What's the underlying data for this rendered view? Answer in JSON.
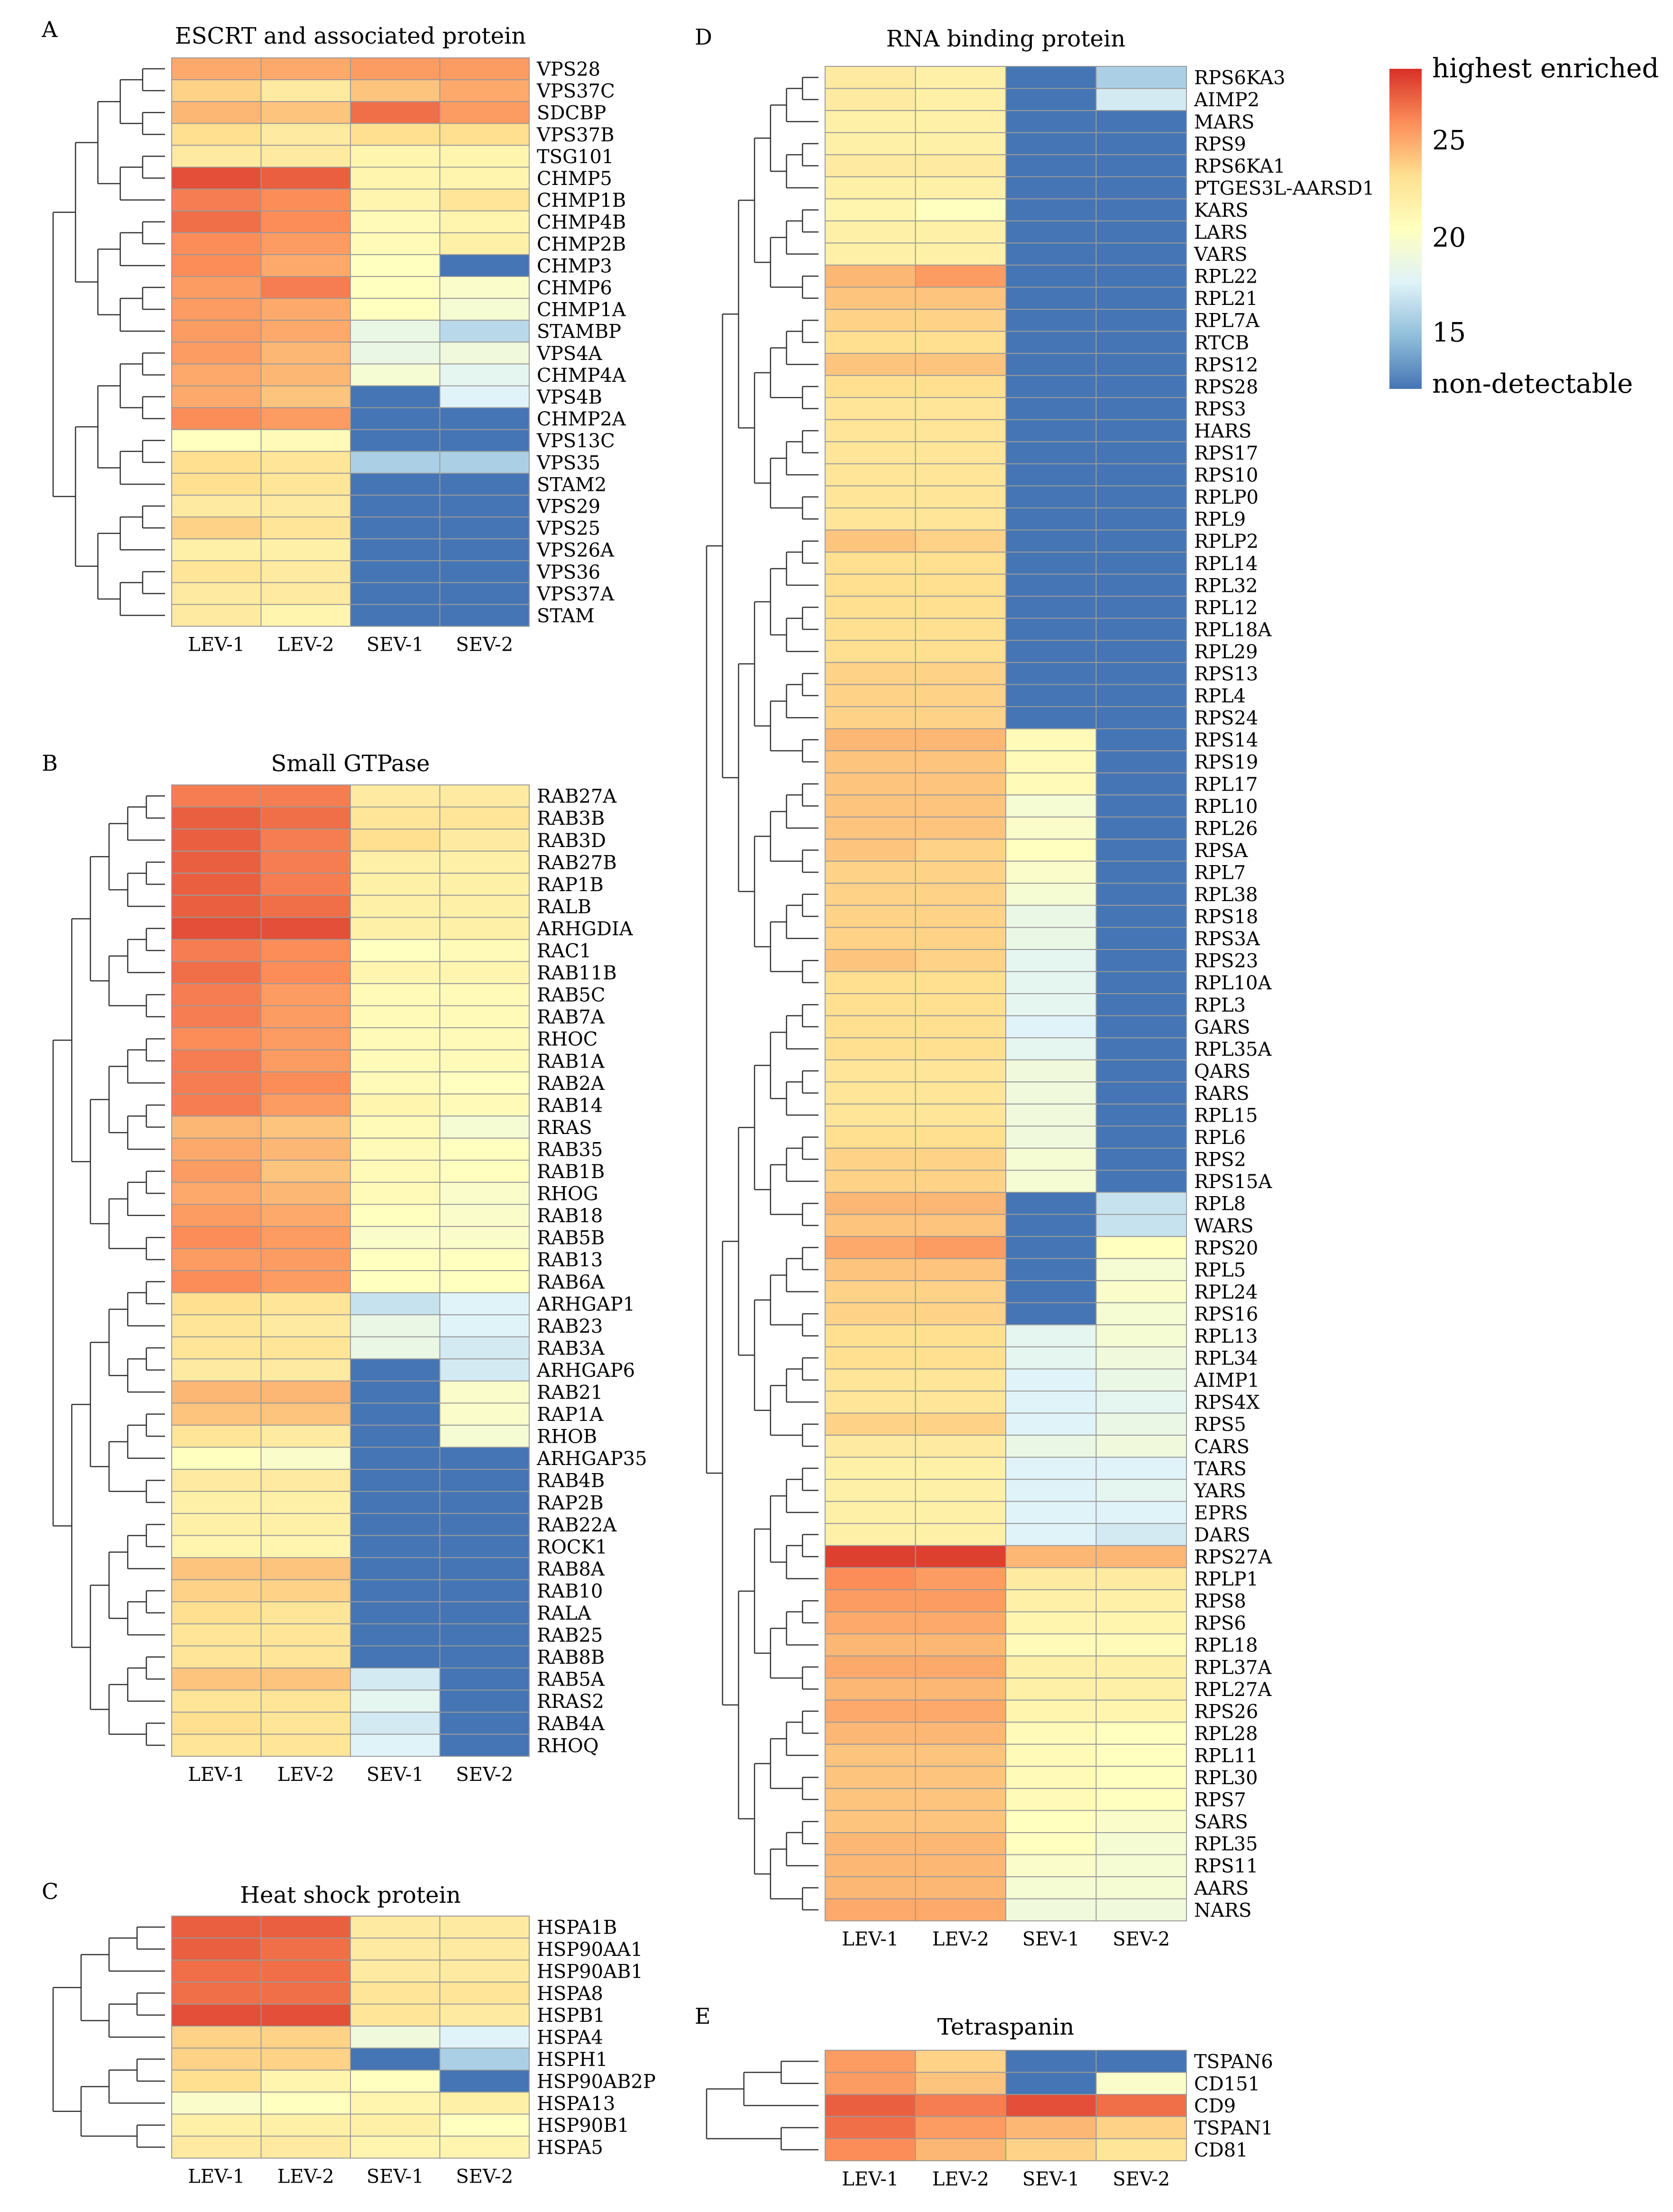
{
  "figure": {
    "legend": {
      "top_label": "highest enriched",
      "bottom_label": "non-detectable",
      "ticks": [
        25,
        20,
        15
      ],
      "min": 11,
      "max": 29,
      "colors": [
        "#4575b4",
        "#91bfdb",
        "#e0f3f8",
        "#ffffbf",
        "#fee090",
        "#fc8d59",
        "#d73027"
      ]
    }
  },
  "chart_data": [
    {
      "type": "heatmap",
      "letter": "A",
      "title": "ESCRT and associated protein",
      "columns": [
        "LEV-1",
        "LEV-2",
        "SEV-1",
        "SEV-2"
      ],
      "rows": [
        "VPS28",
        "VPS37C",
        "SDCBP",
        "VPS37B",
        "TSG101",
        "CHMP5",
        "CHMP1B",
        "CHMP4B",
        "CHMP2B",
        "CHMP3",
        "CHMP6",
        "CHMP1A",
        "STAMBP",
        "VPS4A",
        "CHMP4A",
        "VPS4B",
        "CHMP2A",
        "VPS13C",
        "VPS35",
        "STAM2",
        "VPS29",
        "VPS25",
        "VPS26A",
        "VPS36",
        "VPS37A",
        "STAM"
      ],
      "values": [
        [
          25,
          25,
          25.5,
          25.5
        ],
        [
          23.5,
          22,
          24,
          25
        ],
        [
          24.5,
          24,
          27,
          25.5
        ],
        [
          23,
          22,
          23,
          23
        ],
        [
          22,
          22,
          21,
          21
        ],
        [
          28,
          27.5,
          21,
          21
        ],
        [
          26.5,
          26,
          21,
          22.5
        ],
        [
          27,
          26,
          20.5,
          21
        ],
        [
          26,
          25.5,
          20.5,
          21.5
        ],
        [
          26,
          25,
          20,
          11
        ],
        [
          25.5,
          26.5,
          20,
          19.5
        ],
        [
          25.5,
          25,
          20,
          19
        ],
        [
          25.5,
          25,
          18,
          15.5
        ],
        [
          25.5,
          24.5,
          18,
          18.5
        ],
        [
          25,
          24.5,
          19,
          17.5
        ],
        [
          25,
          24,
          11,
          17
        ],
        [
          26,
          25.5,
          11,
          11
        ],
        [
          20,
          20.5,
          11,
          11
        ],
        [
          23,
          22.5,
          15,
          15
        ],
        [
          23,
          22.5,
          11,
          11
        ],
        [
          22,
          22,
          11,
          11
        ],
        [
          23.5,
          22.5,
          11,
          11
        ],
        [
          21.5,
          21.5,
          11,
          11
        ],
        [
          22.5,
          22,
          11,
          11
        ],
        [
          22,
          22,
          11,
          11
        ],
        [
          22,
          21,
          11,
          11
        ]
      ]
    },
    {
      "type": "heatmap",
      "letter": "B",
      "title": "Small GTPase",
      "columns": [
        "LEV-1",
        "LEV-2",
        "SEV-1",
        "SEV-2"
      ],
      "rows": [
        "RAB27A",
        "RAB3B",
        "RAB3D",
        "RAB27B",
        "RAP1B",
        "RALB",
        "ARHGDIA",
        "RAC1",
        "RAB11B",
        "RAB5C",
        "RAB7A",
        "RHOC",
        "RAB1A",
        "RAB2A",
        "RAB14",
        "RRAS",
        "RAB35",
        "RAB1B",
        "RHOG",
        "RAB18",
        "RAB5B",
        "RAB13",
        "RAB6A",
        "ARHGAP1",
        "RAB23",
        "RAB3A",
        "ARHGAP6",
        "RAB21",
        "RAP1A",
        "RHOB",
        "ARHGAP35",
        "RAB4B",
        "RAP2B",
        "RAB22A",
        "ROCK1",
        "RAB8A",
        "RAB10",
        "RALA",
        "RAB25",
        "RAB8B",
        "RAB5A",
        "RRAS2",
        "RAB4A",
        "RHOQ"
      ],
      "values": [
        [
          26.5,
          26.5,
          22,
          22
        ],
        [
          27.5,
          27,
          22.5,
          22.5
        ],
        [
          27.5,
          26.5,
          23,
          22
        ],
        [
          27.5,
          26.5,
          21.5,
          21.5
        ],
        [
          27.5,
          26.5,
          21.5,
          21.5
        ],
        [
          27.5,
          27,
          21.5,
          21.5
        ],
        [
          28,
          28,
          21.5,
          21.5
        ],
        [
          26.5,
          26,
          20,
          20.5
        ],
        [
          27,
          26,
          21,
          21
        ],
        [
          26.5,
          25.5,
          20.5,
          20.5
        ],
        [
          26.5,
          25.5,
          20.5,
          20.5
        ],
        [
          26,
          25.5,
          20.5,
          20.5
        ],
        [
          26.5,
          25.5,
          20.5,
          20.5
        ],
        [
          26.5,
          26,
          20.5,
          20
        ],
        [
          26.5,
          25.5,
          21,
          20.5
        ],
        [
          24.5,
          24,
          20.5,
          19
        ],
        [
          25,
          24.5,
          20.5,
          20
        ],
        [
          25.5,
          24,
          20.5,
          20
        ],
        [
          25,
          24.5,
          20.5,
          19.5
        ],
        [
          25.5,
          25,
          20,
          19.5
        ],
        [
          26,
          25.5,
          19.5,
          19.5
        ],
        [
          25.5,
          25.5,
          20,
          20
        ],
        [
          26,
          25.5,
          20,
          20
        ],
        [
          23,
          22.5,
          16,
          17
        ],
        [
          22.5,
          22,
          18,
          17
        ],
        [
          22.5,
          22.5,
          18,
          16.5
        ],
        [
          22,
          22,
          11,
          16.5
        ],
        [
          24.5,
          24.5,
          11,
          19.5
        ],
        [
          24,
          24,
          11,
          19.5
        ],
        [
          22.5,
          22,
          11,
          19
        ],
        [
          20,
          19.5,
          11,
          11
        ],
        [
          22,
          22,
          11,
          11
        ],
        [
          21.5,
          21.5,
          11,
          11
        ],
        [
          21.5,
          21.5,
          11,
          11
        ],
        [
          21,
          21,
          11,
          11
        ],
        [
          24,
          24,
          11,
          11
        ],
        [
          23.5,
          23.5,
          11,
          11
        ],
        [
          23,
          22.5,
          11,
          11
        ],
        [
          22.5,
          22.5,
          11,
          11
        ],
        [
          22.5,
          22.5,
          11,
          11
        ],
        [
          24,
          24,
          16.5,
          11
        ],
        [
          22.5,
          22.5,
          17.5,
          11
        ],
        [
          23,
          22.5,
          16.5,
          11
        ],
        [
          22.5,
          22.5,
          17,
          11
        ]
      ]
    },
    {
      "type": "heatmap",
      "letter": "C",
      "title": "Heat shock protein",
      "columns": [
        "LEV-1",
        "LEV-2",
        "SEV-1",
        "SEV-2"
      ],
      "rows": [
        "HSPA1B",
        "HSP90AA1",
        "HSP90AB1",
        "HSPA8",
        "HSPB1",
        "HSPA4",
        "HSPH1",
        "HSP90AB2P",
        "HSPA13",
        "HSP90B1",
        "HSPA5"
      ],
      "values": [
        [
          27.5,
          27.5,
          22,
          22
        ],
        [
          27.5,
          27,
          22,
          22
        ],
        [
          27,
          27,
          22,
          22
        ],
        [
          27,
          27,
          22.5,
          22.5
        ],
        [
          28,
          28,
          22.5,
          22
        ],
        [
          23.5,
          23.5,
          18.5,
          17
        ],
        [
          23.5,
          23.5,
          11,
          15
        ],
        [
          23,
          21,
          20,
          11
        ],
        [
          19.5,
          20,
          21,
          21.5
        ],
        [
          21.5,
          21.5,
          21.5,
          20
        ],
        [
          22,
          22,
          21,
          21
        ]
      ]
    },
    {
      "type": "heatmap",
      "letter": "D",
      "title": "RNA binding protein",
      "columns": [
        "LEV-1",
        "LEV-2",
        "SEV-1",
        "SEV-2"
      ],
      "rows": [
        "RPS6KA3",
        "AIMP2",
        "MARS",
        "RPS9",
        "RPS6KA1",
        "PTGES3L-AARSD1",
        "KARS",
        "LARS",
        "VARS",
        "RPL22",
        "RPL21",
        "RPL7A",
        "RTCB",
        "RPS12",
        "RPS28",
        "RPS3",
        "HARS",
        "RPS17",
        "RPS10",
        "RPLP0",
        "RPL9",
        "RPLP2",
        "RPL14",
        "RPL32",
        "RPL12",
        "RPL18A",
        "RPL29",
        "RPS13",
        "RPL4",
        "RPS24",
        "RPS14",
        "RPS19",
        "RPL17",
        "RPL10",
        "RPL26",
        "RPSA",
        "RPL7",
        "RPL38",
        "RPS18",
        "RPS3A",
        "RPS23",
        "RPL10A",
        "RPL3",
        "GARS",
        "RPL35A",
        "QARS",
        "RARS",
        "RPL15",
        "RPL6",
        "RPS2",
        "RPS15A",
        "RPL8",
        "WARS",
        "RPS20",
        "RPL5",
        "RPL24",
        "RPS16",
        "RPL13",
        "RPL34",
        "AIMP1",
        "RPS4X",
        "RPS5",
        "CARS",
        "TARS",
        "YARS",
        "EPRS",
        "DARS",
        "RPS27A",
        "RPLP1",
        "RPS8",
        "RPS6",
        "RPL18",
        "RPL37A",
        "RPL27A",
        "RPS26",
        "RPL28",
        "RPL11",
        "RPL30",
        "RPS7",
        "SARS",
        "RPL35",
        "RPS11",
        "AARS",
        "NARS"
      ],
      "values": [
        [
          22,
          21.5,
          11,
          15
        ],
        [
          22,
          21.5,
          11,
          16.5
        ],
        [
          21.5,
          21.5,
          11,
          11
        ],
        [
          21.5,
          21.5,
          11,
          11
        ],
        [
          22,
          22,
          11,
          11
        ],
        [
          21.5,
          21.5,
          11,
          11
        ],
        [
          21,
          20,
          11,
          11
        ],
        [
          21.5,
          21.5,
          11,
          11
        ],
        [
          21.5,
          21.5,
          11,
          11
        ],
        [
          24.5,
          25.5,
          11,
          11
        ],
        [
          24,
          24,
          11,
          11
        ],
        [
          23.5,
          23.5,
          11,
          11
        ],
        [
          23,
          23,
          11,
          11
        ],
        [
          24,
          24,
          11,
          11
        ],
        [
          23,
          23,
          11,
          11
        ],
        [
          22.5,
          22.5,
          11,
          11
        ],
        [
          22.5,
          22.5,
          11,
          11
        ],
        [
          22.5,
          22.5,
          11,
          11
        ],
        [
          22.5,
          22.5,
          11,
          11
        ],
        [
          22.5,
          22.5,
          11,
          11
        ],
        [
          22.5,
          22.5,
          11,
          11
        ],
        [
          24,
          23.5,
          11,
          11
        ],
        [
          23,
          23,
          11,
          11
        ],
        [
          23,
          23,
          11,
          11
        ],
        [
          23,
          23,
          11,
          11
        ],
        [
          23,
          23,
          11,
          11
        ],
        [
          23,
          23,
          11,
          11
        ],
        [
          23.5,
          23.5,
          11,
          11
        ],
        [
          23.5,
          23.5,
          11,
          11
        ],
        [
          23.5,
          23.5,
          11,
          11
        ],
        [
          24.5,
          24.5,
          20.5,
          11
        ],
        [
          24,
          24,
          20.5,
          11
        ],
        [
          24,
          24,
          20.5,
          11
        ],
        [
          24,
          24,
          19,
          11
        ],
        [
          24,
          24,
          19.5,
          11
        ],
        [
          24,
          23.5,
          20,
          11
        ],
        [
          23.5,
          23.5,
          19.5,
          11
        ],
        [
          23.5,
          23.5,
          19,
          11
        ],
        [
          23.5,
          23.5,
          18,
          11
        ],
        [
          23.5,
          23.5,
          18,
          11
        ],
        [
          24,
          23.5,
          17.5,
          11
        ],
        [
          23,
          23,
          17.5,
          11
        ],
        [
          23,
          23,
          17.5,
          11
        ],
        [
          23,
          23,
          17,
          11
        ],
        [
          23,
          23,
          17.5,
          11
        ],
        [
          22.5,
          22.5,
          18.5,
          11
        ],
        [
          22.5,
          22.5,
          18.5,
          11
        ],
        [
          22.5,
          22.5,
          18.5,
          11
        ],
        [
          23,
          23,
          18.5,
          11
        ],
        [
          23.5,
          23.5,
          19,
          11
        ],
        [
          23.5,
          23.5,
          19,
          11
        ],
        [
          24.5,
          24.5,
          11,
          16
        ],
        [
          24,
          24,
          11,
          16
        ],
        [
          25,
          25.5,
          11,
          20
        ],
        [
          24,
          24,
          11,
          19
        ],
        [
          23.5,
          23.5,
          11,
          19.5
        ],
        [
          23.5,
          23.5,
          11,
          19
        ],
        [
          23,
          23,
          17.5,
          19
        ],
        [
          23,
          23,
          17.5,
          18.5
        ],
        [
          22.5,
          22.5,
          17,
          18
        ],
        [
          22.5,
          22.5,
          17,
          17.5
        ],
        [
          23.5,
          23.5,
          17,
          18
        ],
        [
          22,
          22,
          18,
          18.5
        ],
        [
          21.5,
          21.5,
          17,
          17
        ],
        [
          21.5,
          21.5,
          17,
          17.5
        ],
        [
          21.5,
          21.5,
          17,
          17
        ],
        [
          21.5,
          21.5,
          17,
          16.5
        ],
        [
          28.5,
          28.5,
          24.5,
          24.5
        ],
        [
          26,
          25.5,
          22,
          22
        ],
        [
          25.5,
          25.5,
          21.5,
          21.5
        ],
        [
          25,
          25,
          21,
          21
        ],
        [
          24.5,
          24.5,
          20.5,
          20.5
        ],
        [
          25,
          25,
          21.5,
          21.5
        ],
        [
          24.5,
          24.5,
          21.5,
          21.5
        ],
        [
          25,
          25,
          21,
          21
        ],
        [
          24.5,
          24.5,
          20.5,
          20
        ],
        [
          24,
          24,
          20.5,
          20
        ],
        [
          24,
          24,
          20.5,
          20
        ],
        [
          24,
          24,
          20.5,
          20
        ],
        [
          24,
          24,
          20,
          19.5
        ],
        [
          24.5,
          24.5,
          20,
          19
        ],
        [
          24.5,
          24.5,
          19.5,
          19
        ],
        [
          24.5,
          24.5,
          19,
          19
        ],
        [
          25,
          25,
          18.5,
          18.5
        ]
      ]
    },
    {
      "type": "heatmap",
      "letter": "E",
      "title": "Tetraspanin",
      "columns": [
        "LEV-1",
        "LEV-2",
        "SEV-1",
        "SEV-2"
      ],
      "rows": [
        "TSPAN6",
        "CD151",
        "CD9",
        "TSPAN1",
        "CD81"
      ],
      "values": [
        [
          25.5,
          23.5,
          11,
          11
        ],
        [
          25.5,
          24,
          11,
          19.5
        ],
        [
          27.5,
          26.5,
          28,
          27
        ],
        [
          27,
          25.5,
          24.5,
          23.5
        ],
        [
          26,
          24.5,
          23.5,
          22.5
        ]
      ]
    }
  ]
}
